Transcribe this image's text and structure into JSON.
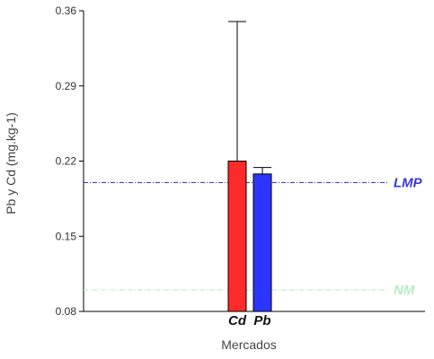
{
  "chart_data": {
    "type": "bar",
    "xlabel": "Mercados",
    "ylabel": "Pb y Cd (mg.kg-1)",
    "ylim": [
      0.08,
      0.36
    ],
    "yticks": [
      "0.08",
      "0.15",
      "0.22",
      "0.29",
      "0.36"
    ],
    "grid": false,
    "bars": [
      {
        "label": "Cd",
        "value": 0.22,
        "error_upper": 0.35,
        "color": "#ff2a2a"
      },
      {
        "label": "Pb",
        "value": 0.208,
        "error_upper": 0.214,
        "color": "#2a35ff"
      }
    ],
    "reference_lines": [
      {
        "label": "LMP",
        "value": 0.2,
        "color": "#2a2aa0",
        "label_color": "#3a3ad0"
      },
      {
        "label": "NM",
        "value": 0.1,
        "color": "#b8ecc0",
        "label_color": "#b8ecc0"
      }
    ]
  }
}
